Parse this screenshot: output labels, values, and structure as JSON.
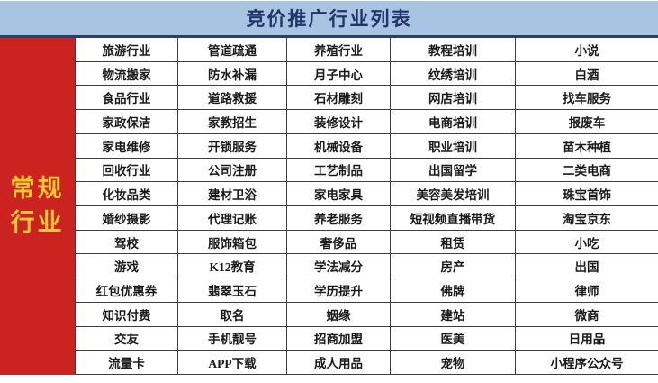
{
  "title": "竞价推广行业列表",
  "sidebar": {
    "label": "常规行业",
    "line1": "常规",
    "line2": "行业"
  },
  "table": {
    "columns": 5,
    "rows": [
      [
        "旅游行业",
        "管道疏通",
        "养殖行业",
        "教程培训",
        "小说"
      ],
      [
        "物流搬家",
        "防水补漏",
        "月子中心",
        "纹绣培训",
        "白酒"
      ],
      [
        "食品行业",
        "道路救援",
        "石材雕刻",
        "网店培训",
        "找车服务"
      ],
      [
        "家政保洁",
        "家教招生",
        "装修设计",
        "电商培训",
        "报废车"
      ],
      [
        "家电维修",
        "开锁服务",
        "机械设备",
        "职业培训",
        "苗木种植"
      ],
      [
        "回收行业",
        "公司注册",
        "工艺制品",
        "出国留学",
        "二类电商"
      ],
      [
        "化妆品类",
        "建材卫浴",
        "家电家具",
        "美容美发培训",
        "珠宝首饰"
      ],
      [
        "婚纱摄影",
        "代理记账",
        "养老服务",
        "短视频直播带货",
        "淘宝京东"
      ],
      [
        "驾校",
        "服饰箱包",
        "奢侈品",
        "租赁",
        "小吃"
      ],
      [
        "游戏",
        "K12教育",
        "学法减分",
        "房产",
        "出国"
      ],
      [
        "红包优惠券",
        "翡翠玉石",
        "学历提升",
        "佛牌",
        "律师"
      ],
      [
        "知识付费",
        "取名",
        "姻缘",
        "建站",
        "微商"
      ],
      [
        "交友",
        "手机靓号",
        "招商加盟",
        "医美",
        "日用品"
      ],
      [
        "流量卡",
        "APP下载",
        "成人用品",
        "宠物",
        "小程序公众号"
      ]
    ]
  },
  "colors": {
    "header_bg": "#A9C3E2",
    "title_text": "#22356B",
    "sidebar_bg": "#CB2420",
    "sidebar_text": "#FFC933",
    "border": "#3F3F3F"
  }
}
